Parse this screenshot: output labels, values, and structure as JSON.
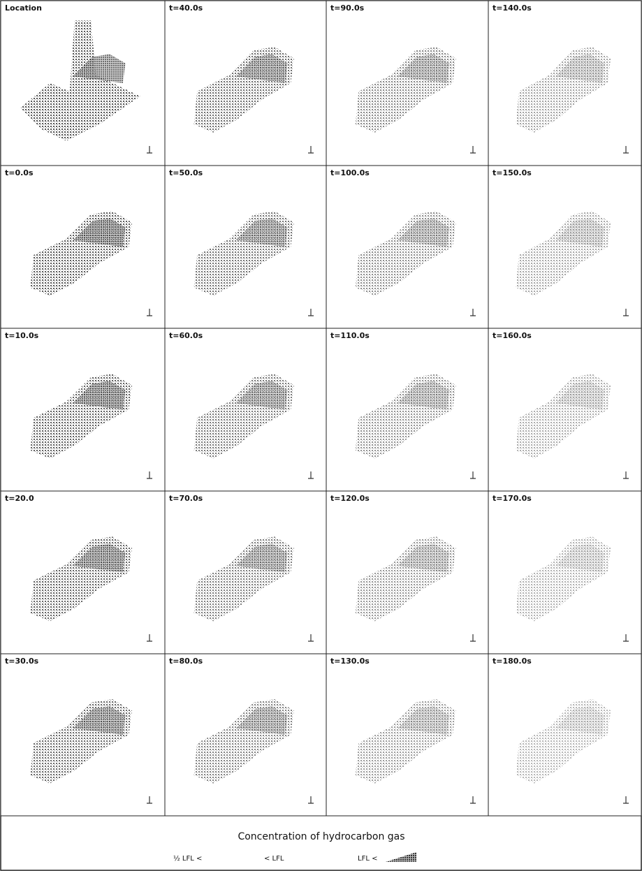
{
  "panels": [
    [
      "Location",
      "t=40.0s",
      "t=90.0s",
      "t=140.0s"
    ],
    [
      "t=0.0s",
      "t=50.0s",
      "t=100.0s",
      "t=150.0s"
    ],
    [
      "t=10.0s",
      "t=60.0s",
      "t=110.0s",
      "t=160.0s"
    ],
    [
      "t=20.0",
      "t=70.0s",
      "t=120.0s",
      "t=170.0s"
    ],
    [
      "t=30.0s",
      "t=80.0s",
      "t=130.0s",
      "t=180.0s"
    ]
  ],
  "legend": {
    "title": "Concentration of hydrocarbon gas",
    "items": [
      "½ LFL <",
      "< LFL",
      "LFL <"
    ]
  }
}
